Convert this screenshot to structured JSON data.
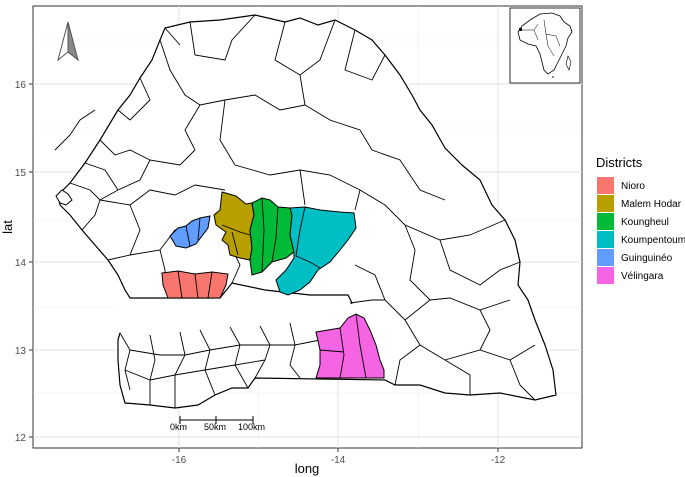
{
  "axes": {
    "x_title": "long",
    "y_title": "lat",
    "x_ticks": [
      "-16",
      "-14",
      "-12"
    ],
    "y_ticks": [
      "12",
      "13",
      "14",
      "15",
      "16"
    ]
  },
  "legend": {
    "title": "Districts",
    "items": [
      {
        "label": "Nioro",
        "color": "#f8766d"
      },
      {
        "label": "Malem Hodar",
        "color": "#b79f00"
      },
      {
        "label": "Koungheul",
        "color": "#00ba38"
      },
      {
        "label": "Koumpentoum",
        "color": "#00bfc4"
      },
      {
        "label": "Guinguinéo",
        "color": "#619cff"
      },
      {
        "label": "Vélingara",
        "color": "#f564e3"
      }
    ]
  },
  "scale_bar": {
    "labels": [
      "0km",
      "50km",
      "100km"
    ]
  },
  "north_arrow": {
    "icon": "north-arrow-icon"
  },
  "inset": {
    "icon": "africa-inset-map"
  },
  "chart_data": {
    "type": "map",
    "xlabel": "long",
    "ylabel": "lat",
    "xlim": [
      -17.6,
      -11.3
    ],
    "ylim": [
      12.1,
      16.8
    ],
    "grid": true,
    "legend_position": "right",
    "highlighted_districts": [
      "Nioro",
      "Malem Hodar",
      "Koungheul",
      "Koumpentoum",
      "Guinguinéo",
      "Vélingara"
    ]
  }
}
